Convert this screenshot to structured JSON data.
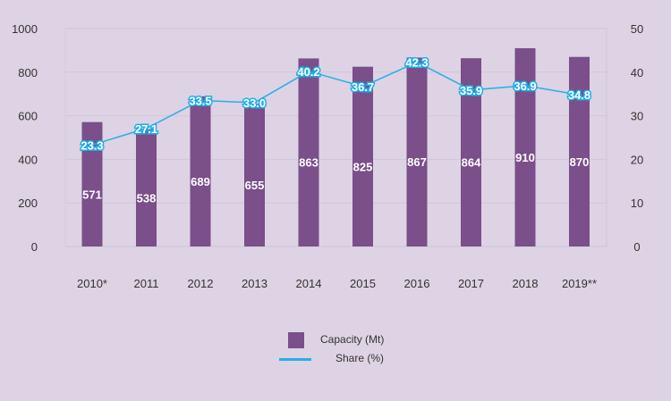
{
  "chart_data": {
    "type": "bar+line",
    "title": "",
    "categories": [
      "2010*",
      "2011",
      "2012",
      "2013",
      "2014",
      "2015",
      "2016",
      "2017",
      "2018",
      "2019**"
    ],
    "series": [
      {
        "name": "Capacity (Mt)",
        "type": "bar",
        "axis": "left",
        "values": [
          571,
          538,
          689,
          655,
          863,
          825,
          867,
          864,
          910,
          870
        ]
      },
      {
        "name": "Share (%)",
        "type": "line",
        "axis": "right",
        "values": [
          23.3,
          27.1,
          33.5,
          33.0,
          40.2,
          36.7,
          42.3,
          35.9,
          36.9,
          34.8
        ]
      }
    ],
    "y_left": {
      "range": [
        0,
        1000
      ],
      "ticks": [
        "0",
        "200",
        "400",
        "600",
        "800",
        "1000"
      ]
    },
    "y_right": {
      "range": [
        0,
        50
      ],
      "ticks": [
        "0",
        "10",
        "20",
        "30",
        "40",
        "50"
      ]
    },
    "value_labels": {
      "bars": [
        "571",
        "538",
        "689",
        "655",
        "863",
        "825",
        "867",
        "864",
        "910",
        "870"
      ],
      "line": [
        "23.3",
        "27.1",
        "33.5",
        "33.0",
        "40.2",
        "36.7",
        "42.3",
        "35.9",
        "36.9",
        "34.8"
      ]
    },
    "grid": true,
    "legend_position": "bottom",
    "colors": {
      "bar": "#7a4f8a",
      "line": "#29aee6",
      "background": "#ddd3e4"
    }
  }
}
